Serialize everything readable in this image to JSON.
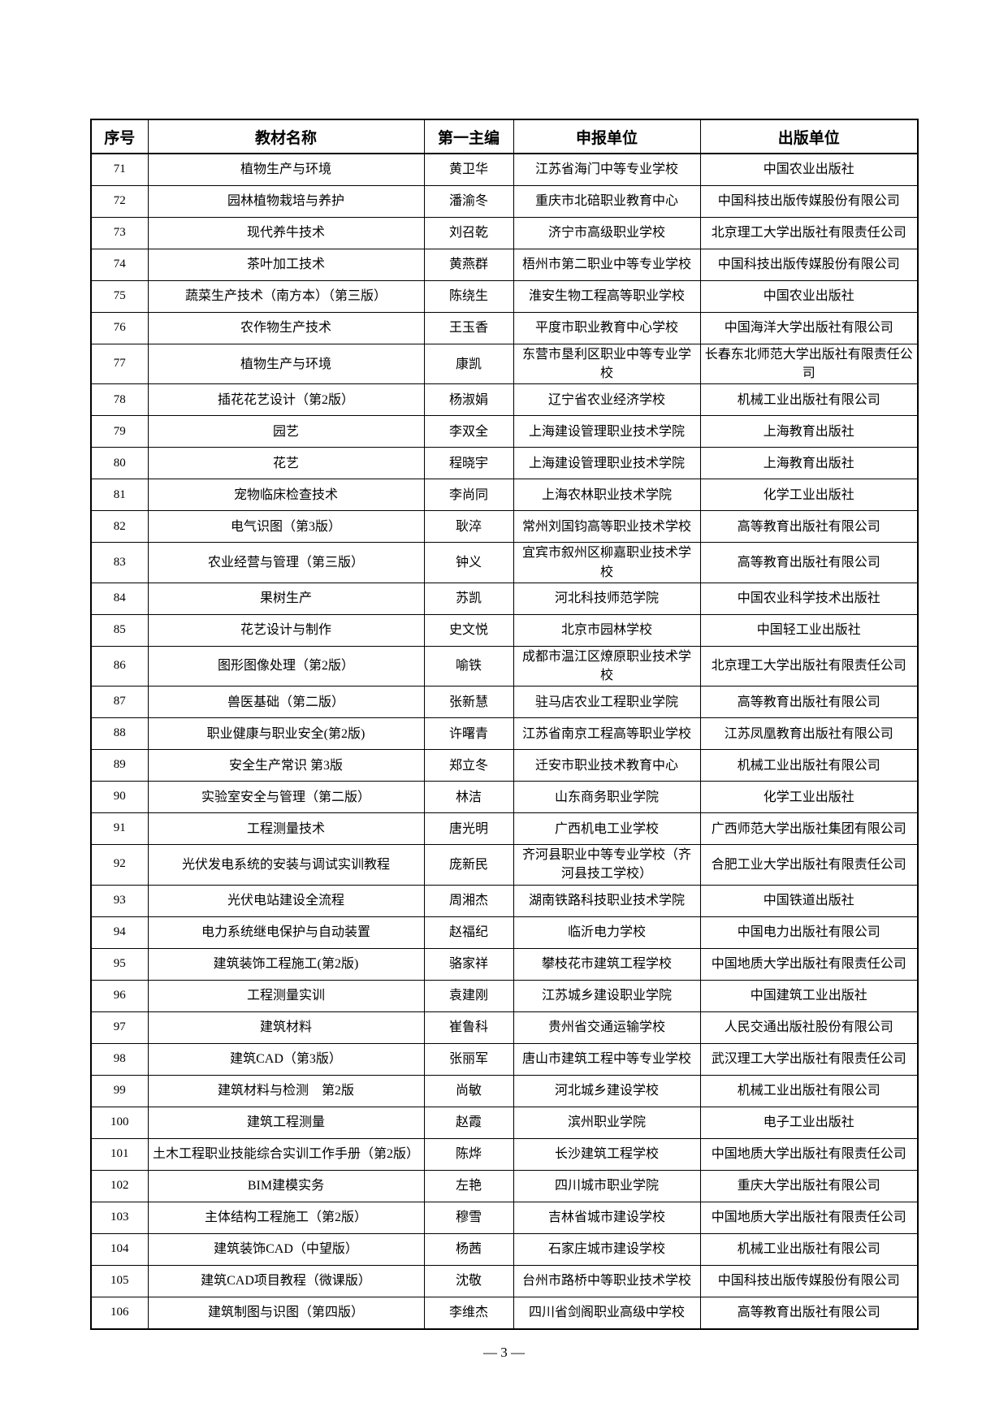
{
  "page": {
    "footer_label": "— 3 —"
  },
  "table": {
    "headers": [
      "序号",
      "教材名称",
      "第一主编",
      "申报单位",
      "出版单位"
    ],
    "rows": [
      {
        "no": "71",
        "title": "植物生产与环境",
        "editor": "黄卫华",
        "applicant": "江苏省海门中等专业学校",
        "publisher": "中国农业出版社"
      },
      {
        "no": "72",
        "title": "园林植物栽培与养护",
        "editor": "潘渝冬",
        "applicant": "重庆市北碚职业教育中心",
        "publisher": "中国科技出版传媒股份有限公司"
      },
      {
        "no": "73",
        "title": "现代养牛技术",
        "editor": "刘召乾",
        "applicant": "济宁市高级职业学校",
        "publisher": "北京理工大学出版社有限责任公司"
      },
      {
        "no": "74",
        "title": "茶叶加工技术",
        "editor": "黄燕群",
        "applicant": "梧州市第二职业中等专业学校",
        "publisher": "中国科技出版传媒股份有限公司"
      },
      {
        "no": "75",
        "title": "蔬菜生产技术（南方本）（第三版）",
        "editor": "陈绕生",
        "applicant": "淮安生物工程高等职业学校",
        "publisher": "中国农业出版社"
      },
      {
        "no": "76",
        "title": "农作物生产技术",
        "editor": "王玉香",
        "applicant": "平度市职业教育中心学校",
        "publisher": "中国海洋大学出版社有限公司"
      },
      {
        "no": "77",
        "title": "植物生产与环境",
        "editor": "康凯",
        "applicant": "东营市垦利区职业中等专业学校",
        "publisher": "长春东北师范大学出版社有限责任公司"
      },
      {
        "no": "78",
        "title": "插花花艺设计（第2版）",
        "editor": "杨淑娟",
        "applicant": "辽宁省农业经济学校",
        "publisher": "机械工业出版社有限公司"
      },
      {
        "no": "79",
        "title": "园艺",
        "editor": "李双全",
        "applicant": "上海建设管理职业技术学院",
        "publisher": "上海教育出版社"
      },
      {
        "no": "80",
        "title": "花艺",
        "editor": "程晓宇",
        "applicant": "上海建设管理职业技术学院",
        "publisher": "上海教育出版社"
      },
      {
        "no": "81",
        "title": "宠物临床检查技术",
        "editor": "李尚同",
        "applicant": "上海农林职业技术学院",
        "publisher": "化学工业出版社"
      },
      {
        "no": "82",
        "title": "电气识图（第3版）",
        "editor": "耿淬",
        "applicant": "常州刘国钧高等职业技术学校",
        "publisher": "高等教育出版社有限公司"
      },
      {
        "no": "83",
        "title": "农业经营与管理（第三版）",
        "editor": "钟义",
        "applicant": "宜宾市叙州区柳嘉职业技术学校",
        "publisher": "高等教育出版社有限公司"
      },
      {
        "no": "84",
        "title": "果树生产",
        "editor": "苏凯",
        "applicant": "河北科技师范学院",
        "publisher": "中国农业科学技术出版社"
      },
      {
        "no": "85",
        "title": "花艺设计与制作",
        "editor": "史文悦",
        "applicant": "北京市园林学校",
        "publisher": "中国轻工业出版社"
      },
      {
        "no": "86",
        "title": "图形图像处理（第2版）",
        "editor": "喻铁",
        "applicant": "成都市温江区燎原职业技术学校",
        "publisher": "北京理工大学出版社有限责任公司"
      },
      {
        "no": "87",
        "title": "兽医基础（第二版）",
        "editor": "张新慧",
        "applicant": "驻马店农业工程职业学院",
        "publisher": "高等教育出版社有限公司"
      },
      {
        "no": "88",
        "title": "职业健康与职业安全(第2版)",
        "editor": "许曙青",
        "applicant": "江苏省南京工程高等职业学校",
        "publisher": "江苏凤凰教育出版社有限公司"
      },
      {
        "no": "89",
        "title": "安全生产常识 第3版",
        "editor": "郑立冬",
        "applicant": "迁安市职业技术教育中心",
        "publisher": "机械工业出版社有限公司"
      },
      {
        "no": "90",
        "title": "实验室安全与管理（第二版）",
        "editor": "林洁",
        "applicant": "山东商务职业学院",
        "publisher": "化学工业出版社"
      },
      {
        "no": "91",
        "title": "工程测量技术",
        "editor": "唐光明",
        "applicant": "广西机电工业学校",
        "publisher": "广西师范大学出版社集团有限公司"
      },
      {
        "no": "92",
        "title": "光伏发电系统的安装与调试实训教程",
        "editor": "庞新民",
        "applicant": "齐河县职业中等专业学校（齐河县技工学校）",
        "publisher": "合肥工业大学出版社有限责任公司"
      },
      {
        "no": "93",
        "title": "光伏电站建设全流程",
        "editor": "周湘杰",
        "applicant": "湖南铁路科技职业技术学院",
        "publisher": "中国铁道出版社"
      },
      {
        "no": "94",
        "title": "电力系统继电保护与自动装置",
        "editor": "赵福纪",
        "applicant": "临沂电力学校",
        "publisher": "中国电力出版社有限公司"
      },
      {
        "no": "95",
        "title": "建筑装饰工程施工(第2版)",
        "editor": "骆家祥",
        "applicant": "攀枝花市建筑工程学校",
        "publisher": "中国地质大学出版社有限责任公司"
      },
      {
        "no": "96",
        "title": "工程测量实训",
        "editor": "袁建刚",
        "applicant": "江苏城乡建设职业学院",
        "publisher": "中国建筑工业出版社"
      },
      {
        "no": "97",
        "title": "建筑材料",
        "editor": "崔鲁科",
        "applicant": "贵州省交通运输学校",
        "publisher": "人民交通出版社股份有限公司"
      },
      {
        "no": "98",
        "title": "建筑CAD（第3版）",
        "editor": "张丽军",
        "applicant": "唐山市建筑工程中等专业学校",
        "publisher": "武汉理工大学出版社有限责任公司"
      },
      {
        "no": "99",
        "title": "建筑材料与检测　第2版",
        "editor": "尚敏",
        "applicant": "河北城乡建设学校",
        "publisher": "机械工业出版社有限公司"
      },
      {
        "no": "100",
        "title": "建筑工程测量",
        "editor": "赵霞",
        "applicant": "滨州职业学院",
        "publisher": "电子工业出版社"
      },
      {
        "no": "101",
        "title": "土木工程职业技能综合实训工作手册（第2版）",
        "editor": "陈烨",
        "applicant": "长沙建筑工程学校",
        "publisher": "中国地质大学出版社有限责任公司"
      },
      {
        "no": "102",
        "title": "BIM建模实务",
        "editor": "左艳",
        "applicant": "四川城市职业学院",
        "publisher": "重庆大学出版社有限公司"
      },
      {
        "no": "103",
        "title": "主体结构工程施工（第2版）",
        "editor": "穆雪",
        "applicant": "吉林省城市建设学校",
        "publisher": "中国地质大学出版社有限责任公司"
      },
      {
        "no": "104",
        "title": "建筑装饰CAD（中望版）",
        "editor": "杨茜",
        "applicant": "石家庄城市建设学校",
        "publisher": "机械工业出版社有限公司"
      },
      {
        "no": "105",
        "title": "建筑CAD项目教程（微课版）",
        "editor": "沈敬",
        "applicant": "台州市路桥中等职业技术学校",
        "publisher": "中国科技出版传媒股份有限公司"
      },
      {
        "no": "106",
        "title": "建筑制图与识图（第四版）",
        "editor": "李维杰",
        "applicant": "四川省剑阁职业高级中学校",
        "publisher": "高等教育出版社有限公司"
      }
    ]
  }
}
